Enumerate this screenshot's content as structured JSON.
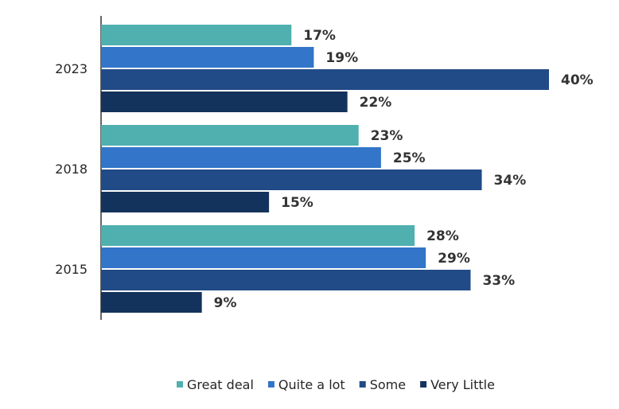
{
  "chart_data": {
    "type": "bar",
    "orientation": "horizontal",
    "title": "",
    "xlabel": "",
    "ylabel": "",
    "xlim": [
      0,
      40
    ],
    "grid": false,
    "legend_position": "bottom",
    "categories": [
      "2023",
      "2018",
      "2015"
    ],
    "series": [
      {
        "name": "Great deal",
        "color": "#4fb0af",
        "values": [
          17,
          23,
          28
        ],
        "labels": [
          "17%",
          "23%",
          "28%"
        ]
      },
      {
        "name": "Quite a lot",
        "color": "#3275c9",
        "values": [
          19,
          25,
          29
        ],
        "labels": [
          "19%",
          "25%",
          "29%"
        ]
      },
      {
        "name": "Some",
        "color": "#214b86",
        "values": [
          40,
          34,
          33
        ],
        "labels": [
          "40%",
          "34%",
          "33%"
        ]
      },
      {
        "name": "Very Little",
        "color": "#14335c",
        "values": [
          22,
          15,
          9
        ],
        "labels": [
          "22%",
          "15%",
          "9%"
        ]
      }
    ]
  }
}
